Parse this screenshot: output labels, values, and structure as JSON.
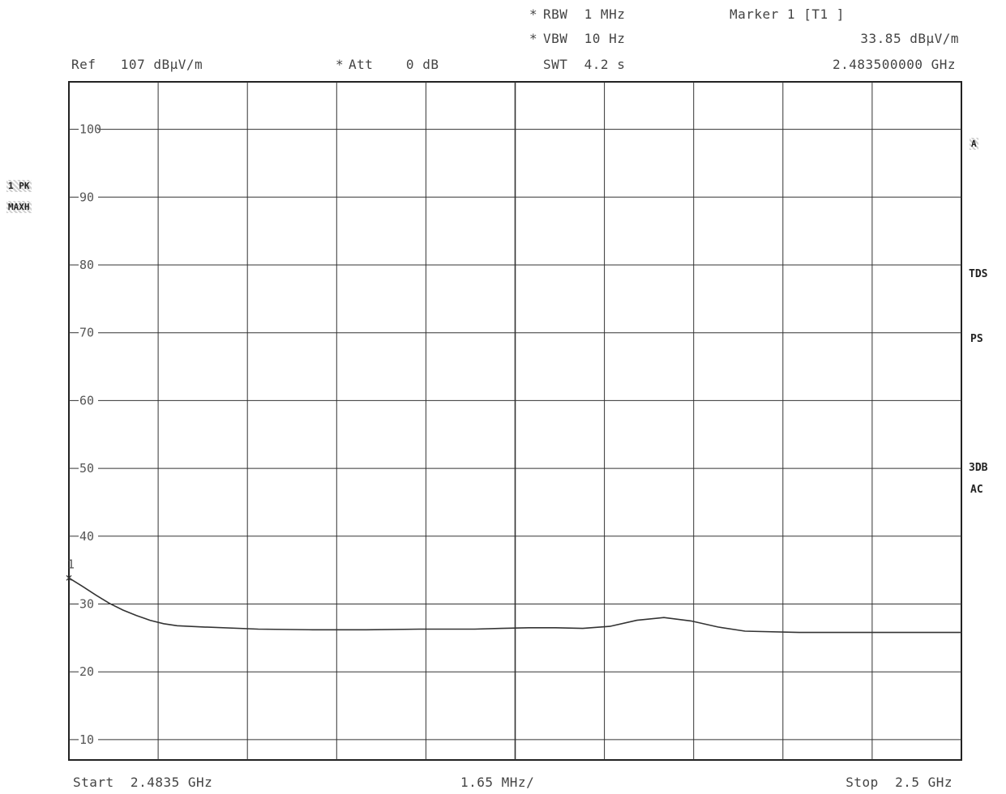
{
  "header": {
    "rbw": "RBW  1 MHz",
    "vbw": "VBW  10 Hz",
    "swt": "SWT  4.2 s",
    "ref": "Ref   107 dBµV/m",
    "att": "Att    0 dB",
    "marker_title": "Marker 1 [T1 ]",
    "marker_level": "33.85 dBµV/m",
    "marker_freq": "2.483500000 GHz",
    "asterisk": "*"
  },
  "left_badges": {
    "trace": "1 PK",
    "mode": "MAXH"
  },
  "right_labels": {
    "top_badge": "A",
    "tds": "TDS",
    "ps": "PS",
    "db3": "3DB",
    "ac": "AC"
  },
  "footer": {
    "start": "Start  2.4835 GHz",
    "span_div": "1.65 MHz/",
    "stop": "Stop  2.5 GHz"
  },
  "chart_data": {
    "type": "line",
    "title": "",
    "xlabel": "",
    "ylabel": "",
    "x_unit": "GHz",
    "y_unit": "dBµV/m",
    "xlim": [
      2.4835,
      2.5
    ],
    "ylim": [
      7,
      107
    ],
    "y_ticks": [
      100,
      90,
      80,
      70,
      60,
      50,
      40,
      30,
      20,
      10
    ],
    "grid": true,
    "marker": {
      "label": "1",
      "x": 2.4835,
      "y": 33.85
    },
    "series": [
      {
        "x": [
          2.4835,
          2.48375,
          2.484,
          2.48425,
          2.4845,
          2.48475,
          2.485,
          2.48525,
          2.4855,
          2.486,
          2.487,
          2.488,
          2.489,
          2.49,
          2.491,
          2.4915,
          2.492,
          2.4925,
          2.493,
          2.4935,
          2.494,
          2.4945,
          2.495,
          2.4955,
          2.496,
          2.497,
          2.498,
          2.499,
          2.5
        ],
        "y": [
          33.85,
          32.6,
          31.3,
          30.1,
          29.1,
          28.3,
          27.6,
          27.1,
          26.8,
          26.6,
          26.3,
          26.2,
          26.2,
          26.3,
          26.3,
          26.4,
          26.5,
          26.5,
          26.4,
          26.7,
          27.6,
          28.0,
          27.5,
          26.6,
          26.0,
          25.8,
          25.8,
          25.8,
          25.8
        ]
      }
    ]
  }
}
